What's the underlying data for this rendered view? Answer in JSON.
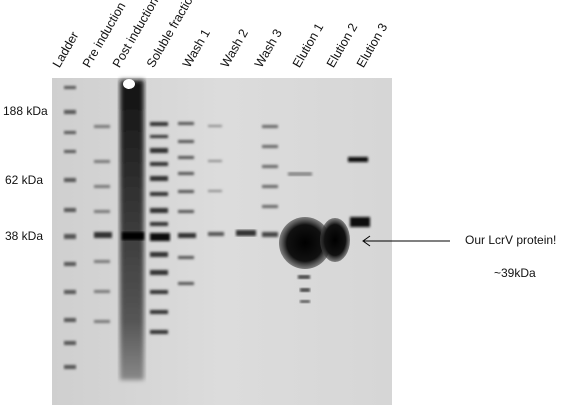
{
  "lane_labels": [
    "Ladder",
    "Pre induction",
    "Post induction",
    "Soluble fraction",
    "Wash 1",
    "Wash 2",
    "Wash 3",
    "Elution 1",
    "Elution 2",
    "Elution 3"
  ],
  "marker_labels": [
    "188 kDa",
    "62 kDa",
    "38 kDa"
  ],
  "annotation": {
    "title": "Our LcrV protein!",
    "subtitle": "~39kDa"
  }
}
